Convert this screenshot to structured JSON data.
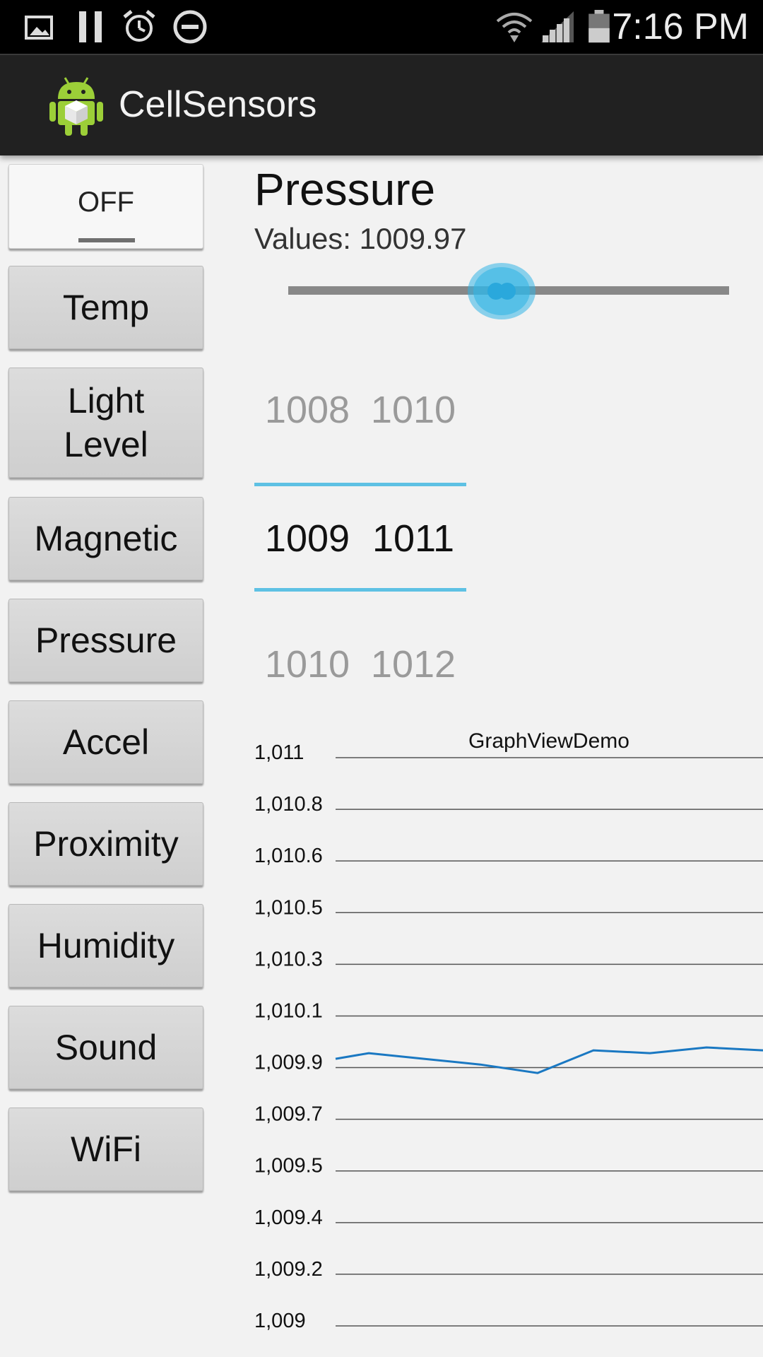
{
  "status_bar": {
    "time": "7:16 PM",
    "left_icons": [
      "image-icon",
      "pause-icon",
      "alarm-icon",
      "do-not-disturb-icon"
    ],
    "right_icons": [
      "wifi-icon",
      "signal-icon",
      "battery-icon"
    ]
  },
  "action_bar": {
    "title": "CellSensors",
    "icon": "android-app-icon"
  },
  "sidebar": {
    "toggle_label": "OFF",
    "buttons": [
      {
        "label": "Temp"
      },
      {
        "label": "Light\nLevel"
      },
      {
        "label": "Magnetic"
      },
      {
        "label": "Pressure"
      },
      {
        "label": "Accel"
      },
      {
        "label": "Proximity"
      },
      {
        "label": "Humidity"
      },
      {
        "label": "Sound"
      },
      {
        "label": "WiFi"
      }
    ]
  },
  "main": {
    "sensor_title": "Pressure",
    "values_text": "Values: 1009.97",
    "slider_fraction": 0.49,
    "picker": {
      "col1": [
        "1008",
        "1009",
        "1010"
      ],
      "col2": [
        "1010",
        "1011",
        "1012"
      ]
    }
  },
  "colors": {
    "accent": "#33b5e5",
    "line": "#1a78c2",
    "picker_divider": "#5ec1e4"
  },
  "chart_data": {
    "type": "line",
    "title": "GraphViewDemo",
    "y_tick_labels": [
      "1,011",
      "1,010.8",
      "1,010.6",
      "1,010.5",
      "1,010.3",
      "1,010.1",
      "1,009.9",
      "1,009.7",
      "1,009.5",
      "1,009.4",
      "1,009.2",
      "1,009"
    ],
    "ylim": [
      1009,
      1011
    ],
    "grid": true,
    "series": [
      {
        "values": [
          1009.94,
          1009.96,
          1009.94,
          1009.92,
          1009.89,
          1009.97,
          1009.96,
          1009.98,
          1009.97
        ]
      }
    ]
  }
}
